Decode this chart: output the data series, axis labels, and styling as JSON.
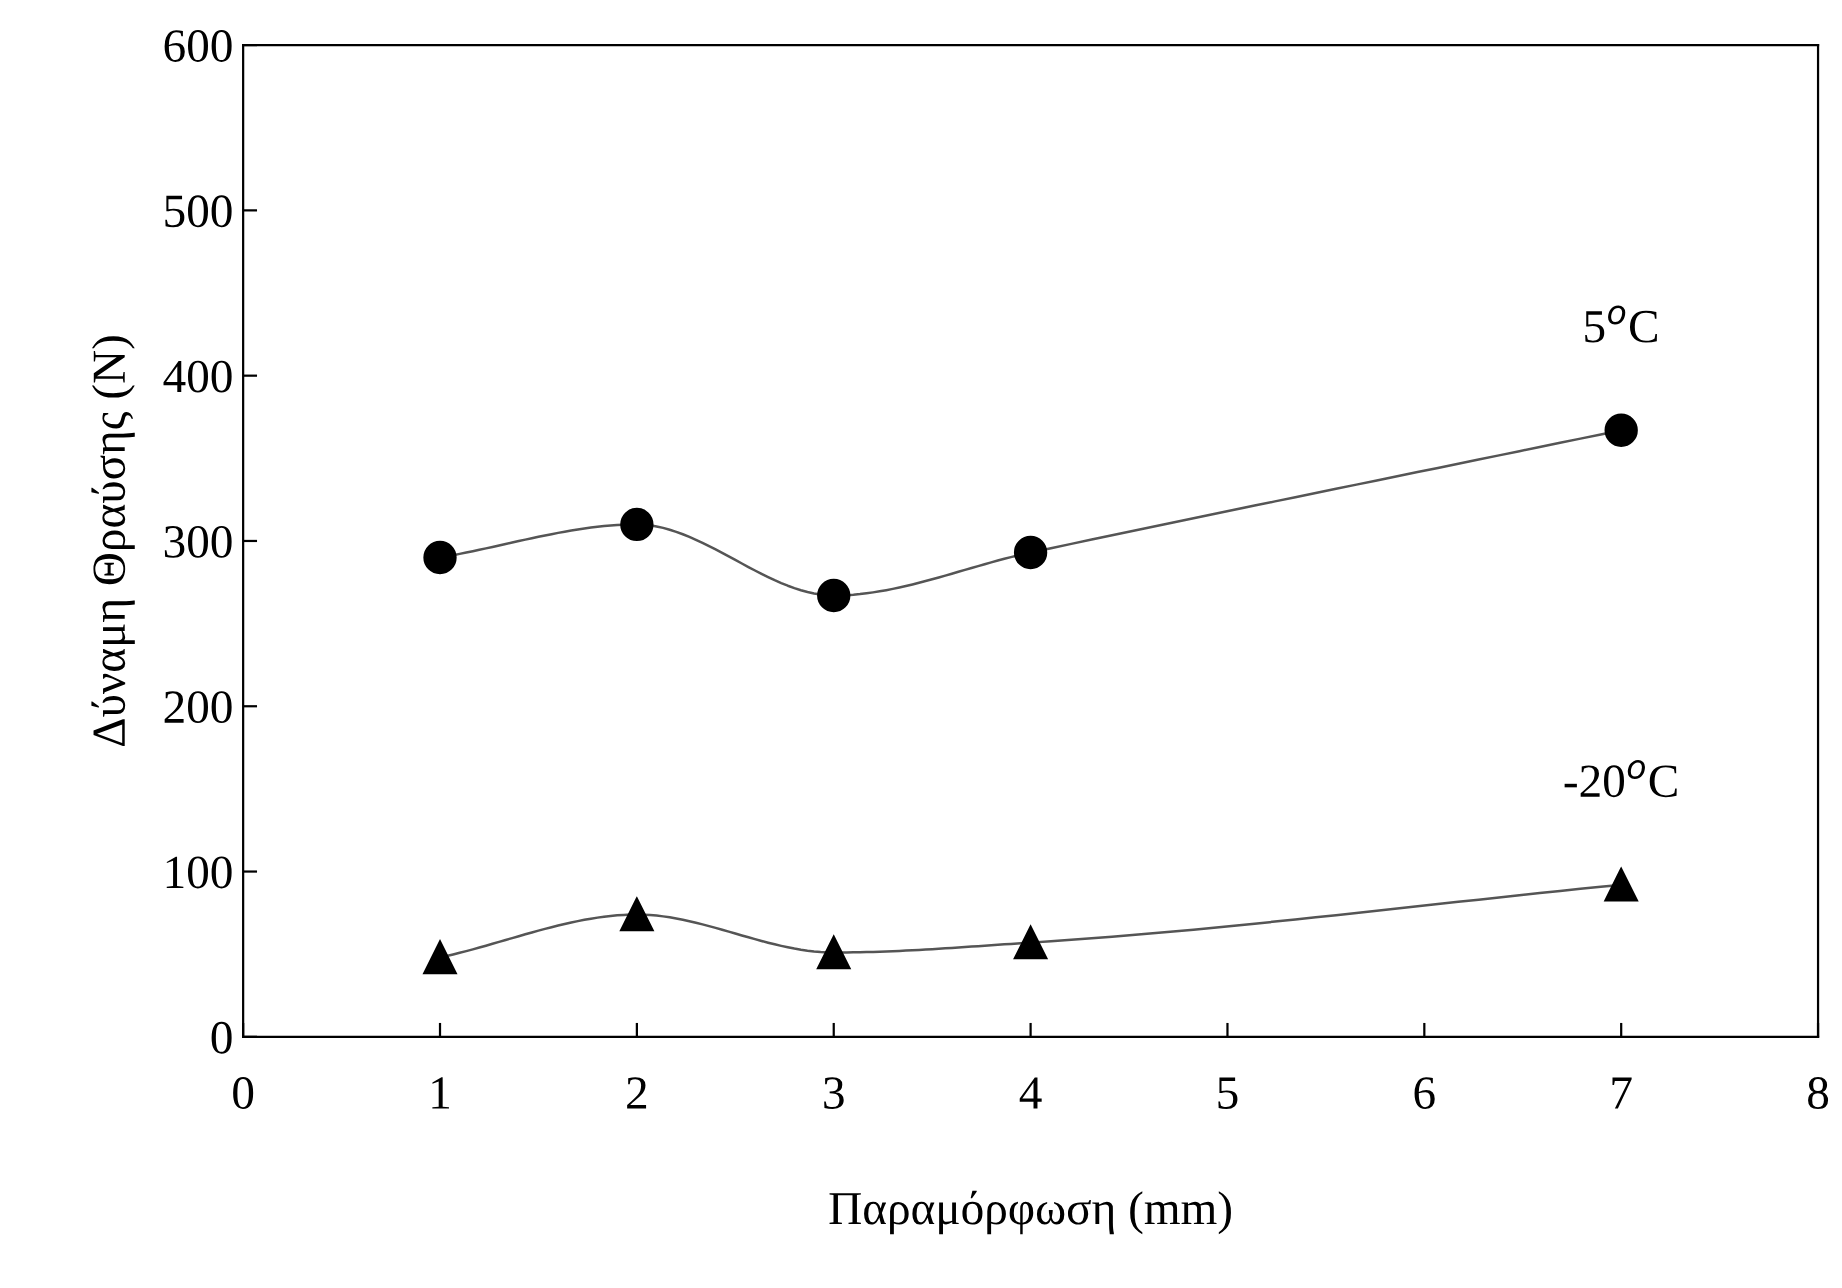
{
  "chart_data": {
    "type": "line",
    "xlabel": "Παραμόρφωση (mm)",
    "ylabel": "Δύναμη Θραύσης (N)",
    "x": [
      1,
      2,
      3,
      4,
      7
    ],
    "series": [
      {
        "name": "5$^{o}$C",
        "color": "#000000",
        "marker": "circle",
        "values": [
          290,
          310,
          267,
          293,
          367
        ]
      },
      {
        "name": "-20$^{o}$C",
        "color": "#000000",
        "marker": "triangle",
        "values": [
          48,
          74,
          51,
          57,
          92
        ]
      }
    ],
    "xlim": [
      0,
      8
    ],
    "xticks": [
      0,
      1,
      2,
      3,
      4,
      5,
      6,
      7,
      8
    ],
    "ylim": [
      0,
      600
    ],
    "yticks": [
      0,
      100,
      200,
      300,
      400,
      500,
      600
    ],
    "grid": false,
    "legend": false,
    "line_style": "solid"
  }
}
